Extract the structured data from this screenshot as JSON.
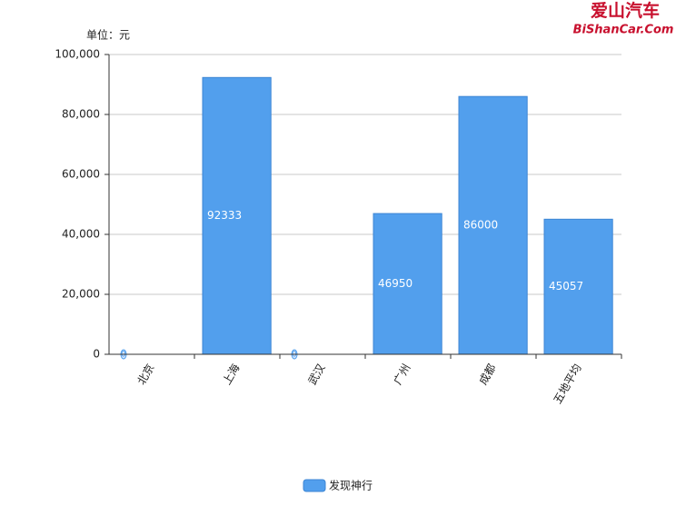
{
  "chart_data": {
    "type": "bar",
    "y_axis_label": "单位：元",
    "categories": [
      "北京",
      "上海",
      "武汉",
      "广州",
      "成都",
      "五地平均"
    ],
    "series": [
      {
        "name": "发现神行",
        "color": "#529fed",
        "values": [
          0,
          92333,
          0,
          46950,
          86000,
          45057
        ]
      }
    ],
    "ylim": [
      0,
      100000
    ],
    "yticks": [
      0,
      {
        "value": 20000,
        "label": "20,000"
      },
      {
        "value": 40000,
        "label": "40,000"
      },
      {
        "value": 60000,
        "label": "60,000"
      },
      {
        "value": 80000,
        "label": "80,000"
      },
      {
        "value": 100000,
        "label": "100,000"
      }
    ],
    "grid": true,
    "legend": "bottom"
  },
  "watermark": {
    "title": "爱山汽车",
    "url": "BiShanCar.Com"
  }
}
